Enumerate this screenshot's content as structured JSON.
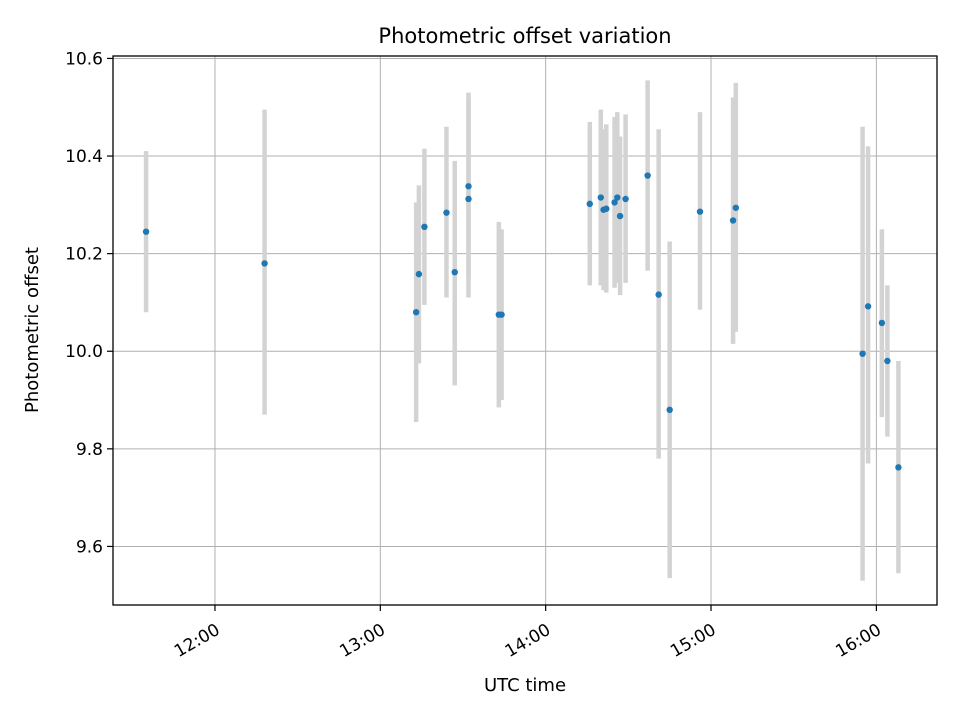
{
  "chart_data": {
    "type": "scatter",
    "title": "Photometric offset variation",
    "xlabel": "UTC time",
    "ylabel": "Photometric offset",
    "x_is_time": true,
    "xlim": [
      "11:23",
      "16:22"
    ],
    "ylim": [
      9.48,
      10.605
    ],
    "xticks": [
      "12:00",
      "13:00",
      "14:00",
      "15:00",
      "16:00"
    ],
    "yticks": [
      9.6,
      9.8,
      10.0,
      10.2,
      10.4,
      10.6
    ],
    "ytick_labels": [
      "9.6",
      "9.8",
      "10.0",
      "10.2",
      "10.4",
      "10.6"
    ],
    "grid": true,
    "point_color": "#1f77b4",
    "errorbar_color": "#d3d3d3",
    "points": [
      {
        "x": "11:35",
        "y": 10.245,
        "ylo": 10.08,
        "yhi": 10.41
      },
      {
        "x": "12:18",
        "y": 10.18,
        "ylo": 9.87,
        "yhi": 10.495
      },
      {
        "x": "13:13",
        "y": 10.08,
        "ylo": 9.855,
        "yhi": 10.305
      },
      {
        "x": "13:14",
        "y": 10.158,
        "ylo": 9.975,
        "yhi": 10.34
      },
      {
        "x": "13:16",
        "y": 10.255,
        "ylo": 10.095,
        "yhi": 10.415
      },
      {
        "x": "13:24",
        "y": 10.284,
        "ylo": 10.11,
        "yhi": 10.46
      },
      {
        "x": "13:27",
        "y": 10.162,
        "ylo": 9.93,
        "yhi": 10.39
      },
      {
        "x": "13:32",
        "y": 10.312,
        "ylo": 10.11,
        "yhi": 10.515
      },
      {
        "x": "13:32",
        "y": 10.338,
        "ylo": 10.15,
        "yhi": 10.53
      },
      {
        "x": "13:43",
        "y": 10.075,
        "ylo": 9.885,
        "yhi": 10.265
      },
      {
        "x": "13:44",
        "y": 10.075,
        "ylo": 9.9,
        "yhi": 10.25
      },
      {
        "x": "14:16",
        "y": 10.302,
        "ylo": 10.135,
        "yhi": 10.47
      },
      {
        "x": "14:20",
        "y": 10.315,
        "ylo": 10.135,
        "yhi": 10.495
      },
      {
        "x": "14:21",
        "y": 10.29,
        "ylo": 10.125,
        "yhi": 10.455
      },
      {
        "x": "14:22",
        "y": 10.292,
        "ylo": 10.12,
        "yhi": 10.465
      },
      {
        "x": "14:25",
        "y": 10.305,
        "ylo": 10.13,
        "yhi": 10.48
      },
      {
        "x": "14:26",
        "y": 10.315,
        "ylo": 10.14,
        "yhi": 10.49
      },
      {
        "x": "14:27",
        "y": 10.277,
        "ylo": 10.115,
        "yhi": 10.44
      },
      {
        "x": "14:29",
        "y": 10.312,
        "ylo": 10.14,
        "yhi": 10.485
      },
      {
        "x": "14:37",
        "y": 10.36,
        "ylo": 10.165,
        "yhi": 10.555
      },
      {
        "x": "14:41",
        "y": 10.116,
        "ylo": 9.78,
        "yhi": 10.455
      },
      {
        "x": "14:45",
        "y": 9.88,
        "ylo": 9.535,
        "yhi": 10.225
      },
      {
        "x": "14:56",
        "y": 10.286,
        "ylo": 10.085,
        "yhi": 10.49
      },
      {
        "x": "15:08",
        "y": 10.268,
        "ylo": 10.015,
        "yhi": 10.52
      },
      {
        "x": "15:09",
        "y": 10.294,
        "ylo": 10.04,
        "yhi": 10.55
      },
      {
        "x": "15:55",
        "y": 9.995,
        "ylo": 9.53,
        "yhi": 10.46
      },
      {
        "x": "15:57",
        "y": 10.092,
        "ylo": 9.77,
        "yhi": 10.42
      },
      {
        "x": "16:02",
        "y": 10.058,
        "ylo": 9.865,
        "yhi": 10.25
      },
      {
        "x": "16:04",
        "y": 9.98,
        "ylo": 9.825,
        "yhi": 10.135
      },
      {
        "x": "16:08",
        "y": 9.762,
        "ylo": 9.545,
        "yhi": 9.98
      }
    ]
  }
}
